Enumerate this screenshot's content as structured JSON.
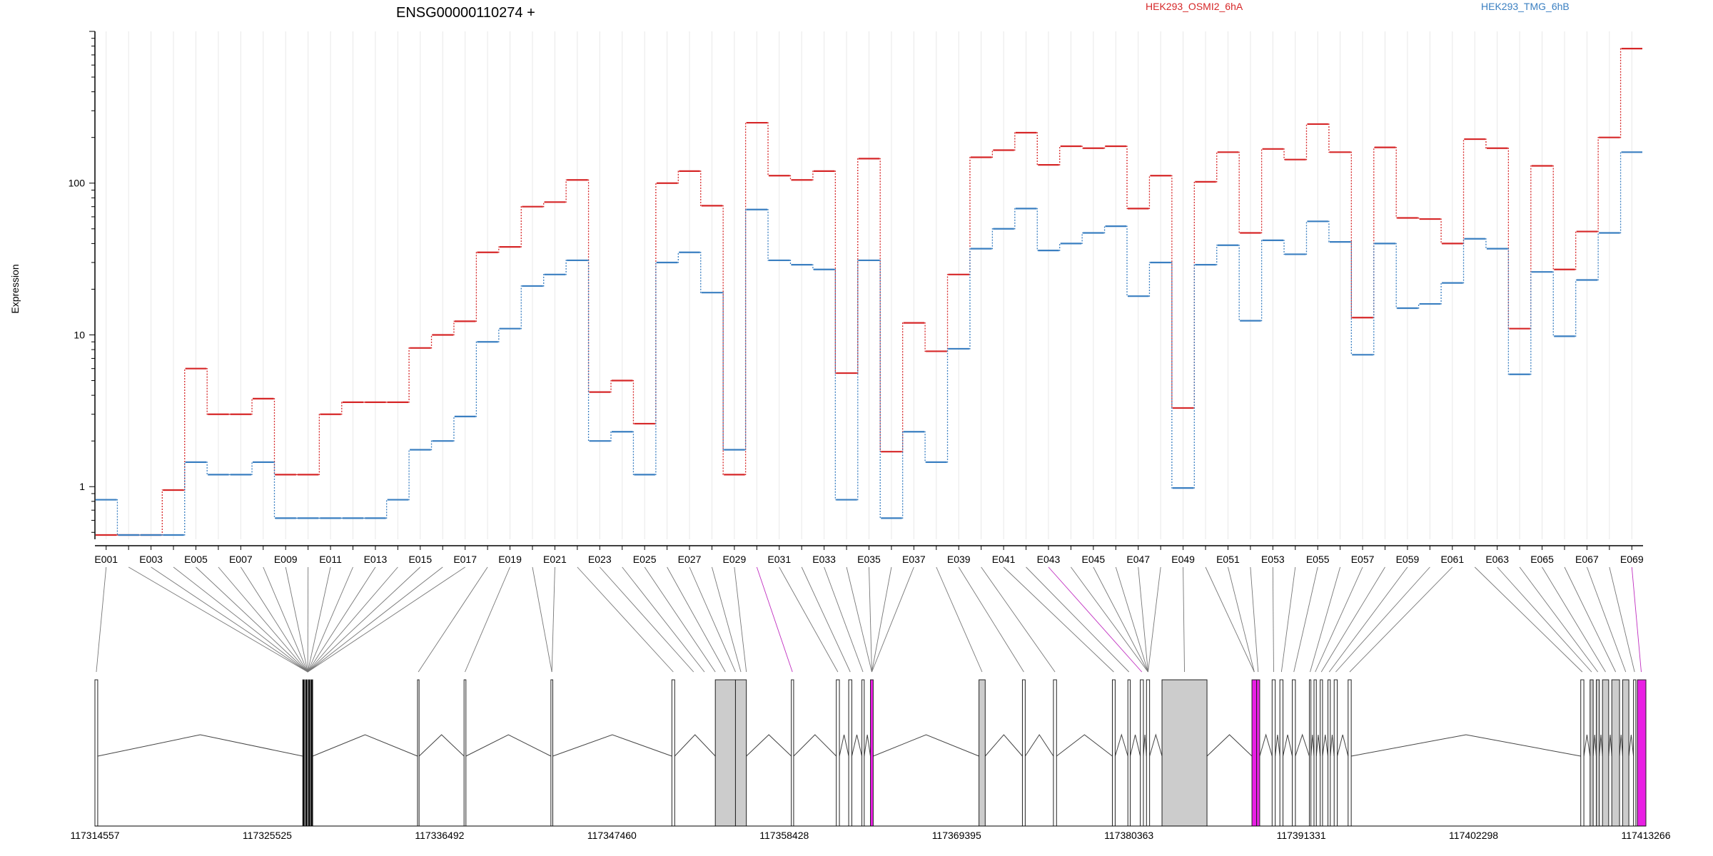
{
  "chart_data": {
    "type": "line",
    "title": "ENSG00000110274 +",
    "ylabel": "Expression",
    "y_scale": "log",
    "ylim": [
      0.45,
      1000
    ],
    "y_ticks": [
      1,
      10,
      100
    ],
    "y_tick_labels": [
      "1",
      "10",
      "100"
    ],
    "grid": "vertical, light",
    "legend_position": "top-right",
    "categories": [
      "E001",
      "E002",
      "E003",
      "E004",
      "E005",
      "E006",
      "E007",
      "E008",
      "E009",
      "E010",
      "E011",
      "E012",
      "E013",
      "E014",
      "E015",
      "E016",
      "E017",
      "E018",
      "E019",
      "E020",
      "E021",
      "E022",
      "E023",
      "E024",
      "E025",
      "E026",
      "E027",
      "E028",
      "E029",
      "E030",
      "E031",
      "E032",
      "E033",
      "E034",
      "E035",
      "E036",
      "E037",
      "E038",
      "E039",
      "E040",
      "E041",
      "E042",
      "E043",
      "E044",
      "E045",
      "E046",
      "E047",
      "E048",
      "E049",
      "E050",
      "E051",
      "E052",
      "E053",
      "E054",
      "E055",
      "E056",
      "E057",
      "E058",
      "E059",
      "E060",
      "E061",
      "E062",
      "E063",
      "E064",
      "E065",
      "E066",
      "E067",
      "E068",
      "E069"
    ],
    "x_tick_labels": [
      "E001",
      "E003",
      "E005",
      "E007",
      "E009",
      "E011",
      "E013",
      "E015",
      "E017",
      "E019",
      "E021",
      "E023",
      "E025",
      "E027",
      "E029",
      "E031",
      "E033",
      "E035",
      "E037",
      "E039",
      "E041",
      "E043",
      "E045",
      "E047",
      "E049",
      "E051",
      "E053",
      "E055",
      "E057",
      "E059",
      "E061",
      "E063",
      "E065",
      "E067",
      "E069"
    ],
    "series": [
      {
        "name": "HEK293_OSMI2_6hA",
        "color": "#d62728",
        "values": [
          0.48,
          0.48,
          0.48,
          0.95,
          6.0,
          3.0,
          3.0,
          3.8,
          1.2,
          1.2,
          3.0,
          3.6,
          3.6,
          3.6,
          8.2,
          10.0,
          12.3,
          35.0,
          38.0,
          70.0,
          75.0,
          105.0,
          4.2,
          5.0,
          2.6,
          100.0,
          120.0,
          71.0,
          1.2,
          250.0,
          112.0,
          105.0,
          120.0,
          5.6,
          145.0,
          1.7,
          12.0,
          7.8,
          25.0,
          148.0,
          165.0,
          215.0,
          132.0,
          175.0,
          170.0,
          175.0,
          68.0,
          112.0,
          3.3,
          102.0,
          160.0,
          47.0,
          168.0,
          143.0,
          245.0,
          160.0,
          13.0,
          172.0,
          59.0,
          58.0,
          40.0,
          195.0,
          170.0,
          11.0,
          130.0,
          27.0,
          48.0,
          200.0,
          770.0
        ]
      },
      {
        "name": "HEK293_TMG_6hB",
        "color": "#3a7fc1",
        "values": [
          0.82,
          0.48,
          0.48,
          0.48,
          1.45,
          1.2,
          1.2,
          1.45,
          0.62,
          0.62,
          0.62,
          0.62,
          0.62,
          0.82,
          1.75,
          2.0,
          2.9,
          9.0,
          11.0,
          21.0,
          25.0,
          31.0,
          2.0,
          2.3,
          1.2,
          30.0,
          35.0,
          19.0,
          1.75,
          67.0,
          31.0,
          29.0,
          27.0,
          0.82,
          31.0,
          0.62,
          2.3,
          1.45,
          8.1,
          37.0,
          50.0,
          68.0,
          36.0,
          40.0,
          47.0,
          52.0,
          18.0,
          30.0,
          0.98,
          29.0,
          39.0,
          12.4,
          42.0,
          34.0,
          56.0,
          41.0,
          7.4,
          40.0,
          15.0,
          16.0,
          22.0,
          43.0,
          37.0,
          5.5,
          26.0,
          9.8,
          23.0,
          47.0,
          160.0
        ]
      }
    ],
    "exon_map": {
      "genomic_ticks": [
        "117314557",
        "117325525",
        "117336492",
        "117347460",
        "117358428",
        "117369395",
        "117380363",
        "117391331",
        "117402298",
        "117413266"
      ],
      "colors": {
        "exon": "#cccccc",
        "highlight": "#e91fe4",
        "outline": "#222222"
      }
    }
  }
}
